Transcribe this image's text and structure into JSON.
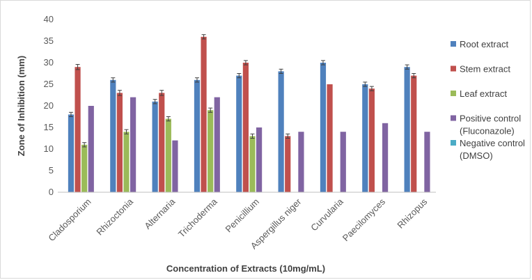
{
  "chart_data": {
    "type": "bar",
    "title": "",
    "xlabel": "Concentration of Extracts (10mg/mL)",
    "ylabel": "Zone of Inhibition (mm)",
    "ylim": [
      0,
      40
    ],
    "yticks": [
      0,
      5,
      10,
      15,
      20,
      25,
      30,
      35,
      40
    ],
    "grid": false,
    "legend_position": "right",
    "error_bars": true,
    "categories": [
      "Cladosporium",
      "Rhizoctonia",
      "Alternaria",
      "Trichoderma",
      "Penicillium",
      "Aspergillus niger",
      "Curvularia",
      "Paecilomyces",
      "Rhizopus"
    ],
    "series": [
      {
        "name": "Root extract",
        "color": "#4f81bd",
        "values": [
          18,
          26,
          21,
          26,
          27,
          28,
          30,
          25,
          29
        ],
        "errors": [
          0.5,
          0.5,
          0.5,
          0.5,
          0.5,
          0.5,
          0.5,
          0.5,
          0.5
        ]
      },
      {
        "name": "Stem extract",
        "color": "#c0504d",
        "values": [
          29,
          23,
          23,
          36,
          30,
          13,
          25,
          24,
          27
        ],
        "errors": [
          0.6,
          0.6,
          0.6,
          0.5,
          0.5,
          0.5,
          0,
          0.5,
          0.5
        ]
      },
      {
        "name": "Leaf extract",
        "color": "#9bbb59",
        "values": [
          11,
          14,
          17,
          19,
          13,
          0,
          0,
          0,
          0
        ],
        "errors": [
          0.5,
          0.5,
          0.5,
          0.5,
          0.5,
          0,
          0,
          0,
          0
        ]
      },
      {
        "name": "Positive control (Fluconazole)",
        "legend_lines": [
          "Positive control",
          "(Fluconazole)"
        ],
        "color": "#8064a2",
        "values": [
          20,
          22,
          12,
          22,
          15,
          14,
          14,
          16,
          14
        ],
        "errors": [
          0,
          0,
          0,
          0,
          0,
          0,
          0,
          0,
          0
        ]
      },
      {
        "name": "Negative control (DMSO)",
        "legend_lines": [
          "Negative control",
          "(DMSO)"
        ],
        "color": "#4bacc6",
        "values": [
          0,
          0,
          0,
          0,
          0,
          0,
          0,
          0,
          0
        ],
        "errors": [
          0,
          0,
          0,
          0,
          0,
          0,
          0,
          0,
          0
        ]
      }
    ]
  }
}
